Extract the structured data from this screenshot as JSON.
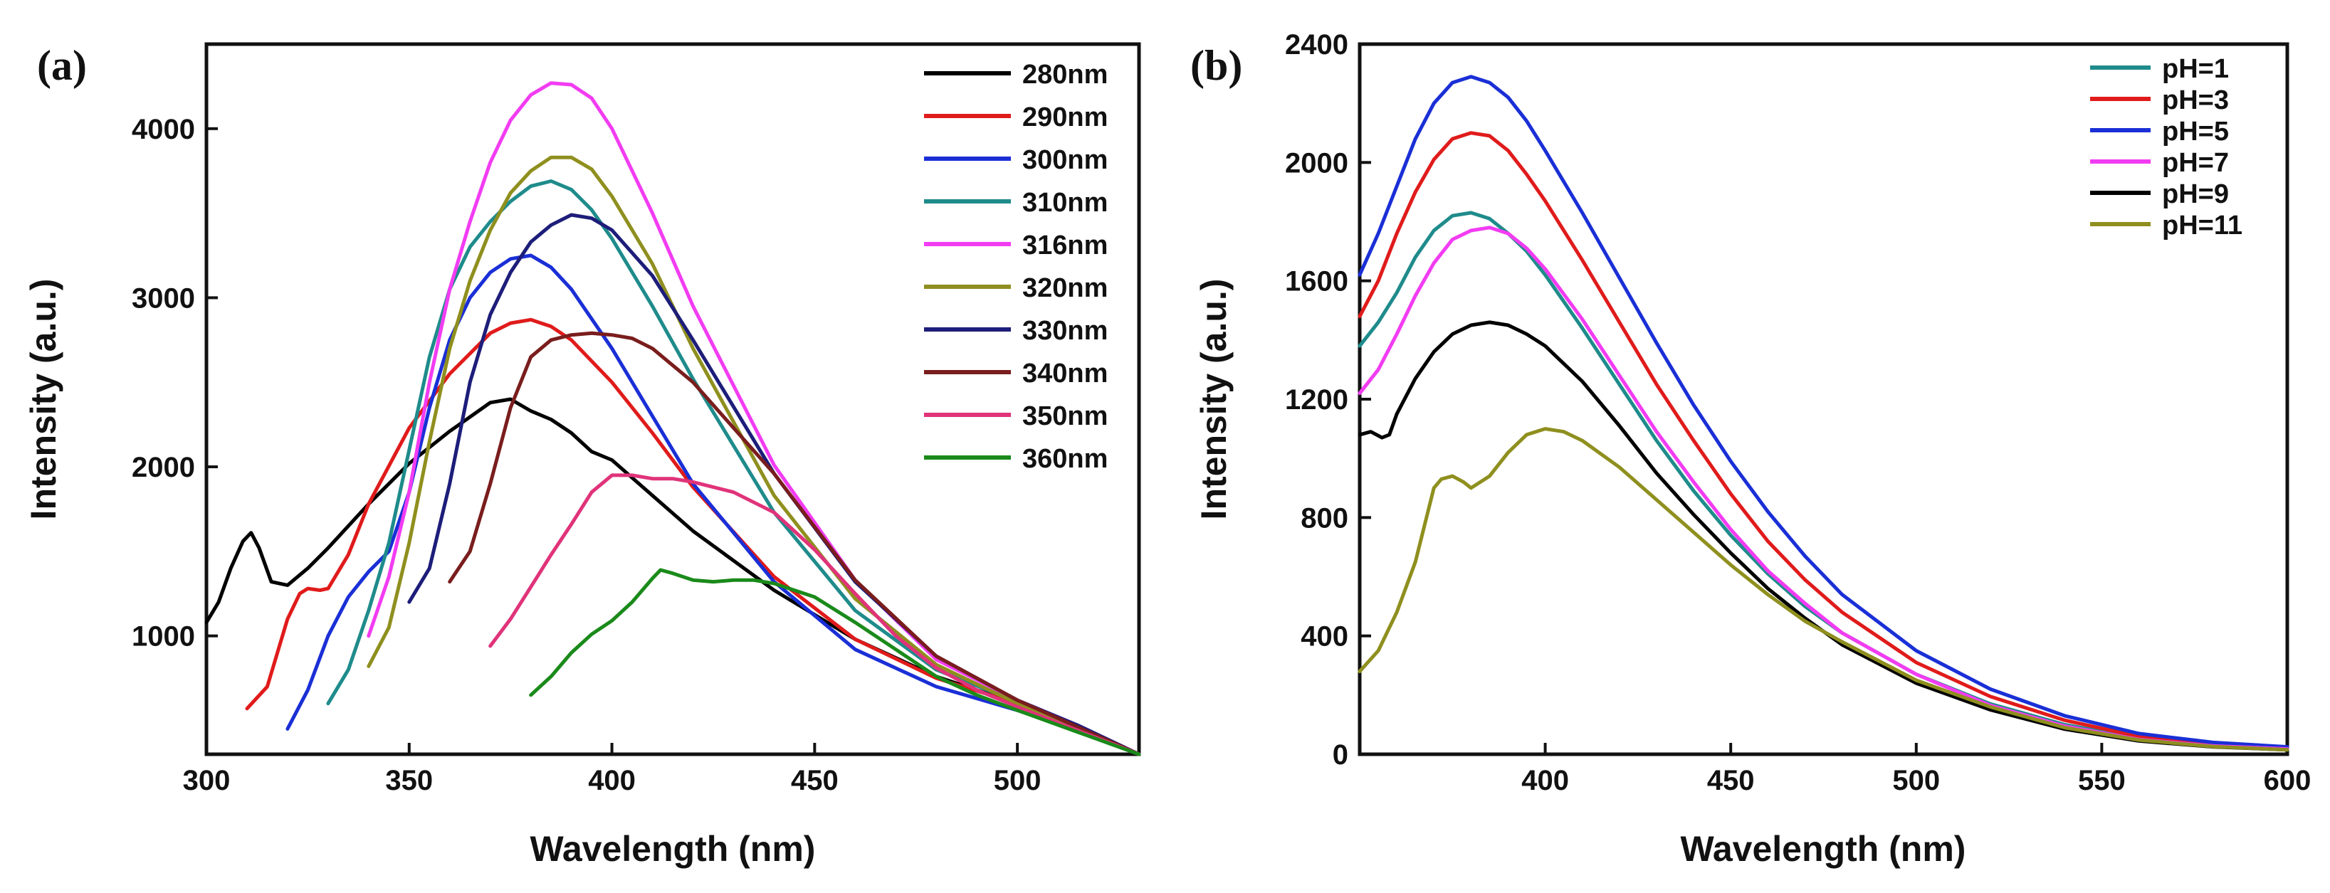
{
  "chart_data": [
    {
      "type": "line",
      "panel_label": "(a)",
      "xlabel": "Wavelength (nm)",
      "ylabel": "Intensity (a.u.)",
      "xlim": [
        300,
        530
      ],
      "ylim": [
        300,
        4500
      ],
      "xticks": [
        300,
        350,
        400,
        450,
        500
      ],
      "yticks": [
        1000,
        2000,
        3000,
        4000
      ],
      "legend_position": "top-right",
      "series": [
        {
          "name": "280nm",
          "color": "#000000",
          "x": [
            300,
            303,
            306,
            309,
            311,
            313,
            316,
            320,
            325,
            330,
            340,
            350,
            360,
            370,
            375,
            380,
            385,
            390,
            395,
            400,
            410,
            420,
            440,
            460,
            480,
            500,
            515,
            530
          ],
          "y": [
            1080,
            1200,
            1400,
            1560,
            1610,
            1520,
            1320,
            1300,
            1400,
            1520,
            1780,
            2020,
            2210,
            2380,
            2400,
            2330,
            2280,
            2200,
            2090,
            2040,
            1830,
            1620,
            1270,
            980,
            760,
            600,
            450,
            300
          ]
        },
        {
          "name": "290nm",
          "color": "#e01b1b",
          "x": [
            310,
            315,
            320,
            323,
            325,
            328,
            330,
            335,
            340,
            350,
            360,
            370,
            375,
            380,
            385,
            390,
            400,
            410,
            420,
            440,
            460,
            480,
            500,
            515,
            530
          ],
          "y": [
            570,
            700,
            1100,
            1250,
            1280,
            1270,
            1280,
            1480,
            1780,
            2230,
            2550,
            2790,
            2850,
            2870,
            2830,
            2750,
            2500,
            2200,
            1880,
            1350,
            980,
            750,
            600,
            460,
            300
          ]
        },
        {
          "name": "300nm",
          "color": "#1a2fd6",
          "x": [
            320,
            325,
            330,
            335,
            340,
            345,
            350,
            355,
            360,
            365,
            370,
            375,
            380,
            385,
            390,
            400,
            410,
            420,
            440,
            460,
            480,
            500,
            515,
            530
          ],
          "y": [
            450,
            680,
            1000,
            1230,
            1380,
            1500,
            1850,
            2350,
            2750,
            3000,
            3150,
            3230,
            3250,
            3180,
            3050,
            2700,
            2300,
            1900,
            1320,
            920,
            700,
            560,
            440,
            300
          ]
        },
        {
          "name": "310nm",
          "color": "#1f8b8b",
          "x": [
            330,
            335,
            340,
            345,
            350,
            355,
            360,
            365,
            370,
            375,
            380,
            385,
            390,
            395,
            400,
            410,
            420,
            440,
            460,
            480,
            500,
            515,
            530
          ],
          "y": [
            600,
            800,
            1150,
            1550,
            2100,
            2650,
            3050,
            3300,
            3450,
            3570,
            3660,
            3690,
            3640,
            3520,
            3350,
            2950,
            2520,
            1730,
            1150,
            800,
            610,
            460,
            300
          ]
        },
        {
          "name": "316nm",
          "color": "#f23cf2",
          "x": [
            340,
            345,
            350,
            355,
            360,
            365,
            370,
            375,
            380,
            385,
            390,
            395,
            400,
            410,
            420,
            440,
            460,
            480,
            500,
            515,
            530
          ],
          "y": [
            1000,
            1350,
            1850,
            2500,
            3050,
            3450,
            3800,
            4050,
            4200,
            4270,
            4260,
            4180,
            4000,
            3500,
            2950,
            2010,
            1330,
            860,
            620,
            470,
            300
          ]
        },
        {
          "name": "320nm",
          "color": "#8f8f1f",
          "x": [
            340,
            345,
            350,
            355,
            360,
            365,
            370,
            375,
            380,
            385,
            390,
            395,
            400,
            410,
            420,
            440,
            460,
            480,
            500,
            515,
            530
          ],
          "y": [
            820,
            1050,
            1550,
            2150,
            2700,
            3100,
            3400,
            3620,
            3750,
            3830,
            3830,
            3760,
            3600,
            3200,
            2700,
            1830,
            1220,
            830,
            600,
            460,
            300
          ]
        },
        {
          "name": "330nm",
          "color": "#1d1d7a",
          "x": [
            350,
            355,
            360,
            365,
            370,
            375,
            380,
            385,
            390,
            395,
            400,
            410,
            420,
            440,
            460,
            480,
            500,
            515,
            530
          ],
          "y": [
            1200,
            1400,
            1900,
            2500,
            2900,
            3150,
            3330,
            3430,
            3490,
            3470,
            3400,
            3130,
            2750,
            1960,
            1320,
            880,
            620,
            470,
            300
          ]
        },
        {
          "name": "340nm",
          "color": "#7a1d1d",
          "x": [
            360,
            365,
            370,
            375,
            380,
            385,
            390,
            395,
            400,
            405,
            410,
            420,
            440,
            460,
            480,
            500,
            515,
            530
          ],
          "y": [
            1320,
            1500,
            1900,
            2350,
            2650,
            2750,
            2780,
            2790,
            2780,
            2760,
            2700,
            2500,
            1960,
            1330,
            880,
            620,
            460,
            300
          ]
        },
        {
          "name": "350nm",
          "color": "#e0337a",
          "x": [
            370,
            375,
            380,
            385,
            390,
            395,
            400,
            405,
            410,
            415,
            420,
            430,
            440,
            450,
            460,
            470,
            480,
            490,
            500,
            515,
            530
          ],
          "y": [
            940,
            1100,
            1290,
            1480,
            1660,
            1850,
            1950,
            1950,
            1930,
            1930,
            1910,
            1850,
            1730,
            1510,
            1250,
            1000,
            810,
            680,
            580,
            440,
            300
          ]
        },
        {
          "name": "360nm",
          "color": "#1a8a1a",
          "x": [
            380,
            385,
            390,
            395,
            400,
            405,
            410,
            412,
            415,
            420,
            425,
            430,
            435,
            440,
            450,
            460,
            470,
            480,
            490,
            500,
            515,
            530
          ],
          "y": [
            650,
            760,
            900,
            1010,
            1090,
            1200,
            1340,
            1390,
            1370,
            1330,
            1320,
            1330,
            1330,
            1310,
            1230,
            1080,
            920,
            760,
            650,
            560,
            430,
            300
          ]
        }
      ]
    },
    {
      "type": "line",
      "panel_label": "(b)",
      "xlabel": "Wavelength (nm)",
      "ylabel": "Intensity (a.u.)",
      "xlim": [
        350,
        600
      ],
      "ylim": [
        0,
        2400
      ],
      "xticks": [
        400,
        450,
        500,
        550,
        600
      ],
      "yticks": [
        0,
        400,
        800,
        1200,
        1600,
        2000,
        2400
      ],
      "legend_position": "top-right",
      "series": [
        {
          "name": "pH=1",
          "color": "#1f8b8b",
          "x": [
            350,
            355,
            360,
            365,
            370,
            375,
            380,
            385,
            390,
            395,
            400,
            410,
            420,
            430,
            440,
            450,
            460,
            470,
            480,
            500,
            520,
            540,
            560,
            580,
            600
          ],
          "y": [
            1380,
            1460,
            1560,
            1680,
            1770,
            1820,
            1830,
            1810,
            1760,
            1700,
            1620,
            1440,
            1250,
            1060,
            890,
            740,
            610,
            500,
            410,
            270,
            170,
            100,
            55,
            30,
            20
          ]
        },
        {
          "name": "pH=3",
          "color": "#e01b1b",
          "x": [
            350,
            355,
            360,
            365,
            370,
            375,
            380,
            385,
            390,
            395,
            400,
            410,
            420,
            430,
            440,
            450,
            460,
            470,
            480,
            500,
            520,
            540,
            560,
            580,
            600
          ],
          "y": [
            1480,
            1600,
            1760,
            1900,
            2010,
            2080,
            2100,
            2090,
            2040,
            1960,
            1870,
            1670,
            1460,
            1250,
            1060,
            880,
            720,
            590,
            480,
            310,
            195,
            115,
            60,
            35,
            20
          ]
        },
        {
          "name": "pH=5",
          "color": "#1a2fd6",
          "x": [
            350,
            355,
            360,
            365,
            370,
            375,
            380,
            385,
            390,
            395,
            400,
            410,
            420,
            430,
            440,
            450,
            460,
            470,
            480,
            500,
            520,
            540,
            560,
            580,
            600
          ],
          "y": [
            1620,
            1760,
            1920,
            2080,
            2200,
            2270,
            2290,
            2270,
            2220,
            2140,
            2040,
            1830,
            1610,
            1390,
            1180,
            990,
            820,
            670,
            540,
            350,
            220,
            130,
            70,
            40,
            25
          ]
        },
        {
          "name": "pH=7",
          "color": "#f23cf2",
          "x": [
            350,
            355,
            360,
            365,
            370,
            375,
            380,
            385,
            390,
            395,
            400,
            410,
            420,
            430,
            440,
            450,
            460,
            470,
            480,
            500,
            520,
            540,
            560,
            580,
            600
          ],
          "y": [
            1220,
            1300,
            1420,
            1550,
            1660,
            1740,
            1770,
            1780,
            1760,
            1710,
            1640,
            1470,
            1280,
            1090,
            920,
            760,
            620,
            510,
            410,
            270,
            165,
            95,
            50,
            28,
            18
          ]
        },
        {
          "name": "pH=9",
          "color": "#000000",
          "x": [
            350,
            353,
            356,
            358,
            360,
            365,
            370,
            375,
            380,
            385,
            390,
            395,
            400,
            410,
            420,
            430,
            440,
            450,
            460,
            470,
            480,
            500,
            520,
            540,
            560,
            580,
            600
          ],
          "y": [
            1080,
            1090,
            1070,
            1080,
            1150,
            1270,
            1360,
            1420,
            1450,
            1460,
            1450,
            1420,
            1380,
            1260,
            1110,
            950,
            810,
            680,
            560,
            460,
            370,
            240,
            150,
            85,
            45,
            25,
            15
          ]
        },
        {
          "name": "pH=11",
          "color": "#8f8f1f",
          "x": [
            350,
            355,
            360,
            365,
            370,
            372,
            375,
            378,
            380,
            385,
            390,
            395,
            400,
            405,
            410,
            420,
            430,
            440,
            450,
            460,
            470,
            480,
            500,
            520,
            540,
            560,
            580,
            600
          ],
          "y": [
            280,
            350,
            480,
            650,
            900,
            930,
            940,
            920,
            900,
            940,
            1020,
            1080,
            1100,
            1090,
            1060,
            970,
            860,
            750,
            640,
            540,
            450,
            380,
            250,
            160,
            90,
            48,
            26,
            15
          ]
        }
      ]
    }
  ]
}
